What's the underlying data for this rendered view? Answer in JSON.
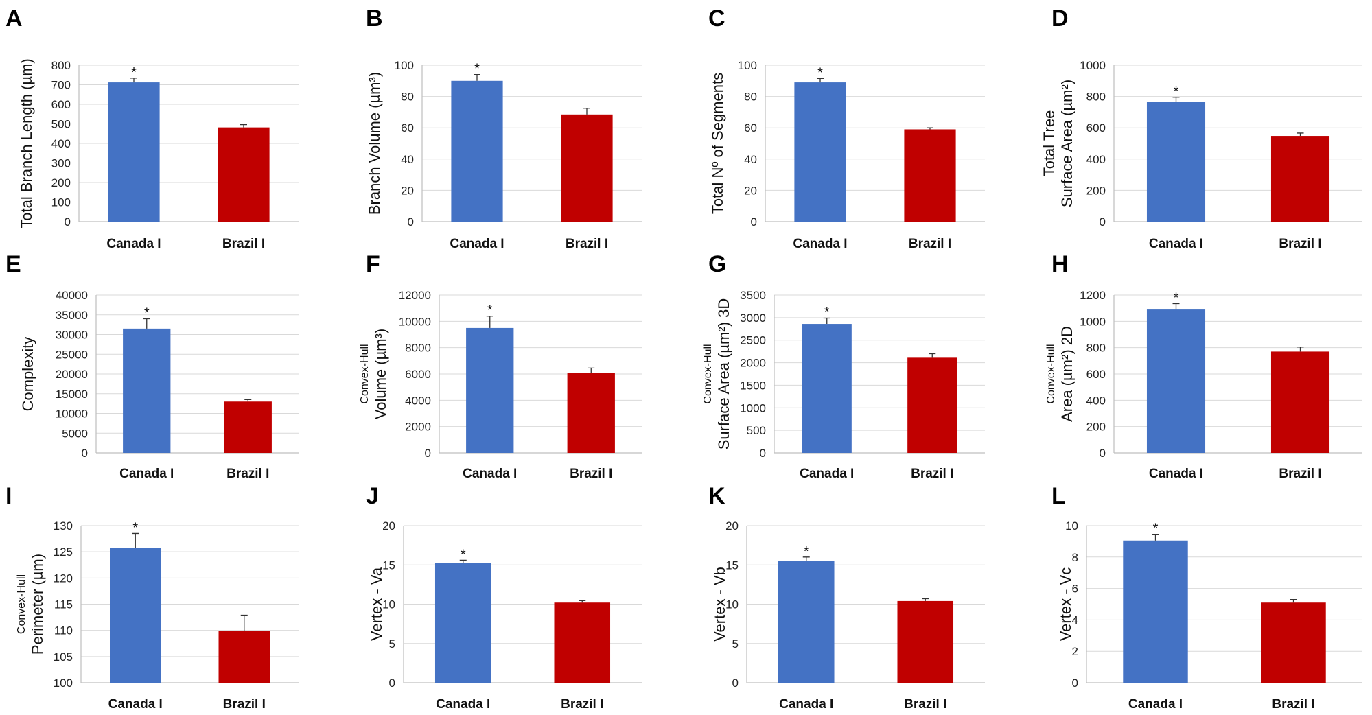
{
  "colors": {
    "canada": "#4472C4",
    "brazil": "#C00000"
  },
  "chart_data": [
    {
      "panel": "A",
      "type": "bar",
      "categories": [
        "Canada I",
        "Brazil I"
      ],
      "values": [
        712,
        482
      ],
      "errors": [
        22,
        14
      ],
      "ylabel": [
        "Total Branch Length (µm)"
      ],
      "ylim": [
        0,
        800
      ],
      "ticks": [
        0,
        100,
        200,
        300,
        400,
        500,
        600,
        700,
        800
      ],
      "significance": [
        "*",
        ""
      ]
    },
    {
      "panel": "B",
      "type": "bar",
      "categories": [
        "Canada I",
        "Brazil I"
      ],
      "values": [
        90,
        68.5
      ],
      "errors": [
        4,
        4
      ],
      "ylabel": [
        "Branch Volume (µm³)"
      ],
      "ylim": [
        0,
        100
      ],
      "ticks": [
        0,
        20,
        40,
        60,
        80,
        100
      ],
      "significance": [
        "*",
        ""
      ]
    },
    {
      "panel": "C",
      "type": "bar",
      "categories": [
        "Canada I",
        "Brazil I"
      ],
      "values": [
        89,
        59
      ],
      "errors": [
        2.5,
        1
      ],
      "ylabel": [
        "Total Nº of Segments"
      ],
      "ylim": [
        0,
        100
      ],
      "ticks": [
        0,
        20,
        40,
        60,
        80,
        100
      ],
      "significance": [
        "*",
        ""
      ]
    },
    {
      "panel": "D",
      "type": "bar",
      "categories": [
        "Canada I",
        "Brazil I"
      ],
      "values": [
        765,
        548
      ],
      "errors": [
        30,
        18
      ],
      "ylabel": [
        "Total Tree",
        "Surface Area (µm²)"
      ],
      "ylim": [
        0,
        1000
      ],
      "ticks": [
        0,
        200,
        400,
        600,
        800,
        1000
      ],
      "significance": [
        "*",
        ""
      ]
    },
    {
      "panel": "E",
      "type": "bar",
      "categories": [
        "Canada I",
        "Brazil I"
      ],
      "values": [
        31500,
        13000
      ],
      "errors": [
        2500,
        500
      ],
      "ylabel": [
        "Complexity"
      ],
      "ylim": [
        0,
        40000
      ],
      "ticks": [
        0,
        5000,
        10000,
        15000,
        20000,
        25000,
        30000,
        35000,
        40000
      ],
      "significance": [
        "*",
        ""
      ]
    },
    {
      "panel": "F",
      "type": "bar",
      "categories": [
        "Canada I",
        "Brazil I"
      ],
      "values": [
        9500,
        6100
      ],
      "errors": [
        900,
        350
      ],
      "ylabel": [
        "Convex-Hull",
        "Volume (µm³)"
      ],
      "ylim": [
        0,
        12000
      ],
      "ticks": [
        0,
        2000,
        4000,
        6000,
        8000,
        10000,
        12000
      ],
      "significance": [
        "*",
        ""
      ]
    },
    {
      "panel": "G",
      "type": "bar",
      "categories": [
        "Canada I",
        "Brazil I"
      ],
      "values": [
        2860,
        2110
      ],
      "errors": [
        130,
        90
      ],
      "ylabel": [
        "Convex-Hull",
        "Surface Area (µm²) 3D"
      ],
      "ylim": [
        0,
        3500
      ],
      "ticks": [
        0,
        500,
        1000,
        1500,
        2000,
        2500,
        3000,
        3500
      ],
      "significance": [
        "*",
        ""
      ]
    },
    {
      "panel": "H",
      "type": "bar",
      "categories": [
        "Canada I",
        "Brazil I"
      ],
      "values": [
        1090,
        770
      ],
      "errors": [
        45,
        35
      ],
      "ylabel": [
        "Convex-Hull",
        "Area (µm²) 2D"
      ],
      "ylim": [
        0,
        1200
      ],
      "ticks": [
        0,
        200,
        400,
        600,
        800,
        1000,
        1200
      ],
      "significance": [
        "*",
        ""
      ]
    },
    {
      "panel": "I",
      "type": "bar",
      "categories": [
        "Canada I",
        "Brazil I"
      ],
      "values": [
        125.7,
        109.9
      ],
      "errors": [
        2.8,
        3.0
      ],
      "ylabel": [
        "Convex-Hull",
        "Perimeter (µm)"
      ],
      "ylim": [
        100,
        130
      ],
      "ticks": [
        100,
        105,
        110,
        115,
        120,
        125,
        130
      ],
      "significance": [
        "*",
        ""
      ]
    },
    {
      "panel": "J",
      "type": "bar",
      "categories": [
        "Canada I",
        "Brazil I"
      ],
      "values": [
        15.2,
        10.2
      ],
      "errors": [
        0.4,
        0.25
      ],
      "ylabel": [
        "Vertex - Va"
      ],
      "ylim": [
        0,
        20
      ],
      "ticks": [
        0,
        5,
        10,
        15,
        20
      ],
      "significance": [
        "*",
        ""
      ]
    },
    {
      "panel": "K",
      "type": "bar",
      "categories": [
        "Canada I",
        "Brazil I"
      ],
      "values": [
        15.5,
        10.4
      ],
      "errors": [
        0.5,
        0.3
      ],
      "ylabel": [
        "Vertex - Vb"
      ],
      "ylim": [
        0,
        20
      ],
      "ticks": [
        0,
        5,
        10,
        15,
        20
      ],
      "significance": [
        "*",
        ""
      ]
    },
    {
      "panel": "L",
      "type": "bar",
      "categories": [
        "Canada I",
        "Brazil I"
      ],
      "values": [
        9.05,
        5.1
      ],
      "errors": [
        0.4,
        0.2
      ],
      "ylabel": [
        "Vertex - Vc"
      ],
      "ylim": [
        0,
        10
      ],
      "ticks": [
        0,
        2,
        4,
        6,
        8,
        10
      ],
      "significance": [
        "*",
        ""
      ]
    }
  ]
}
